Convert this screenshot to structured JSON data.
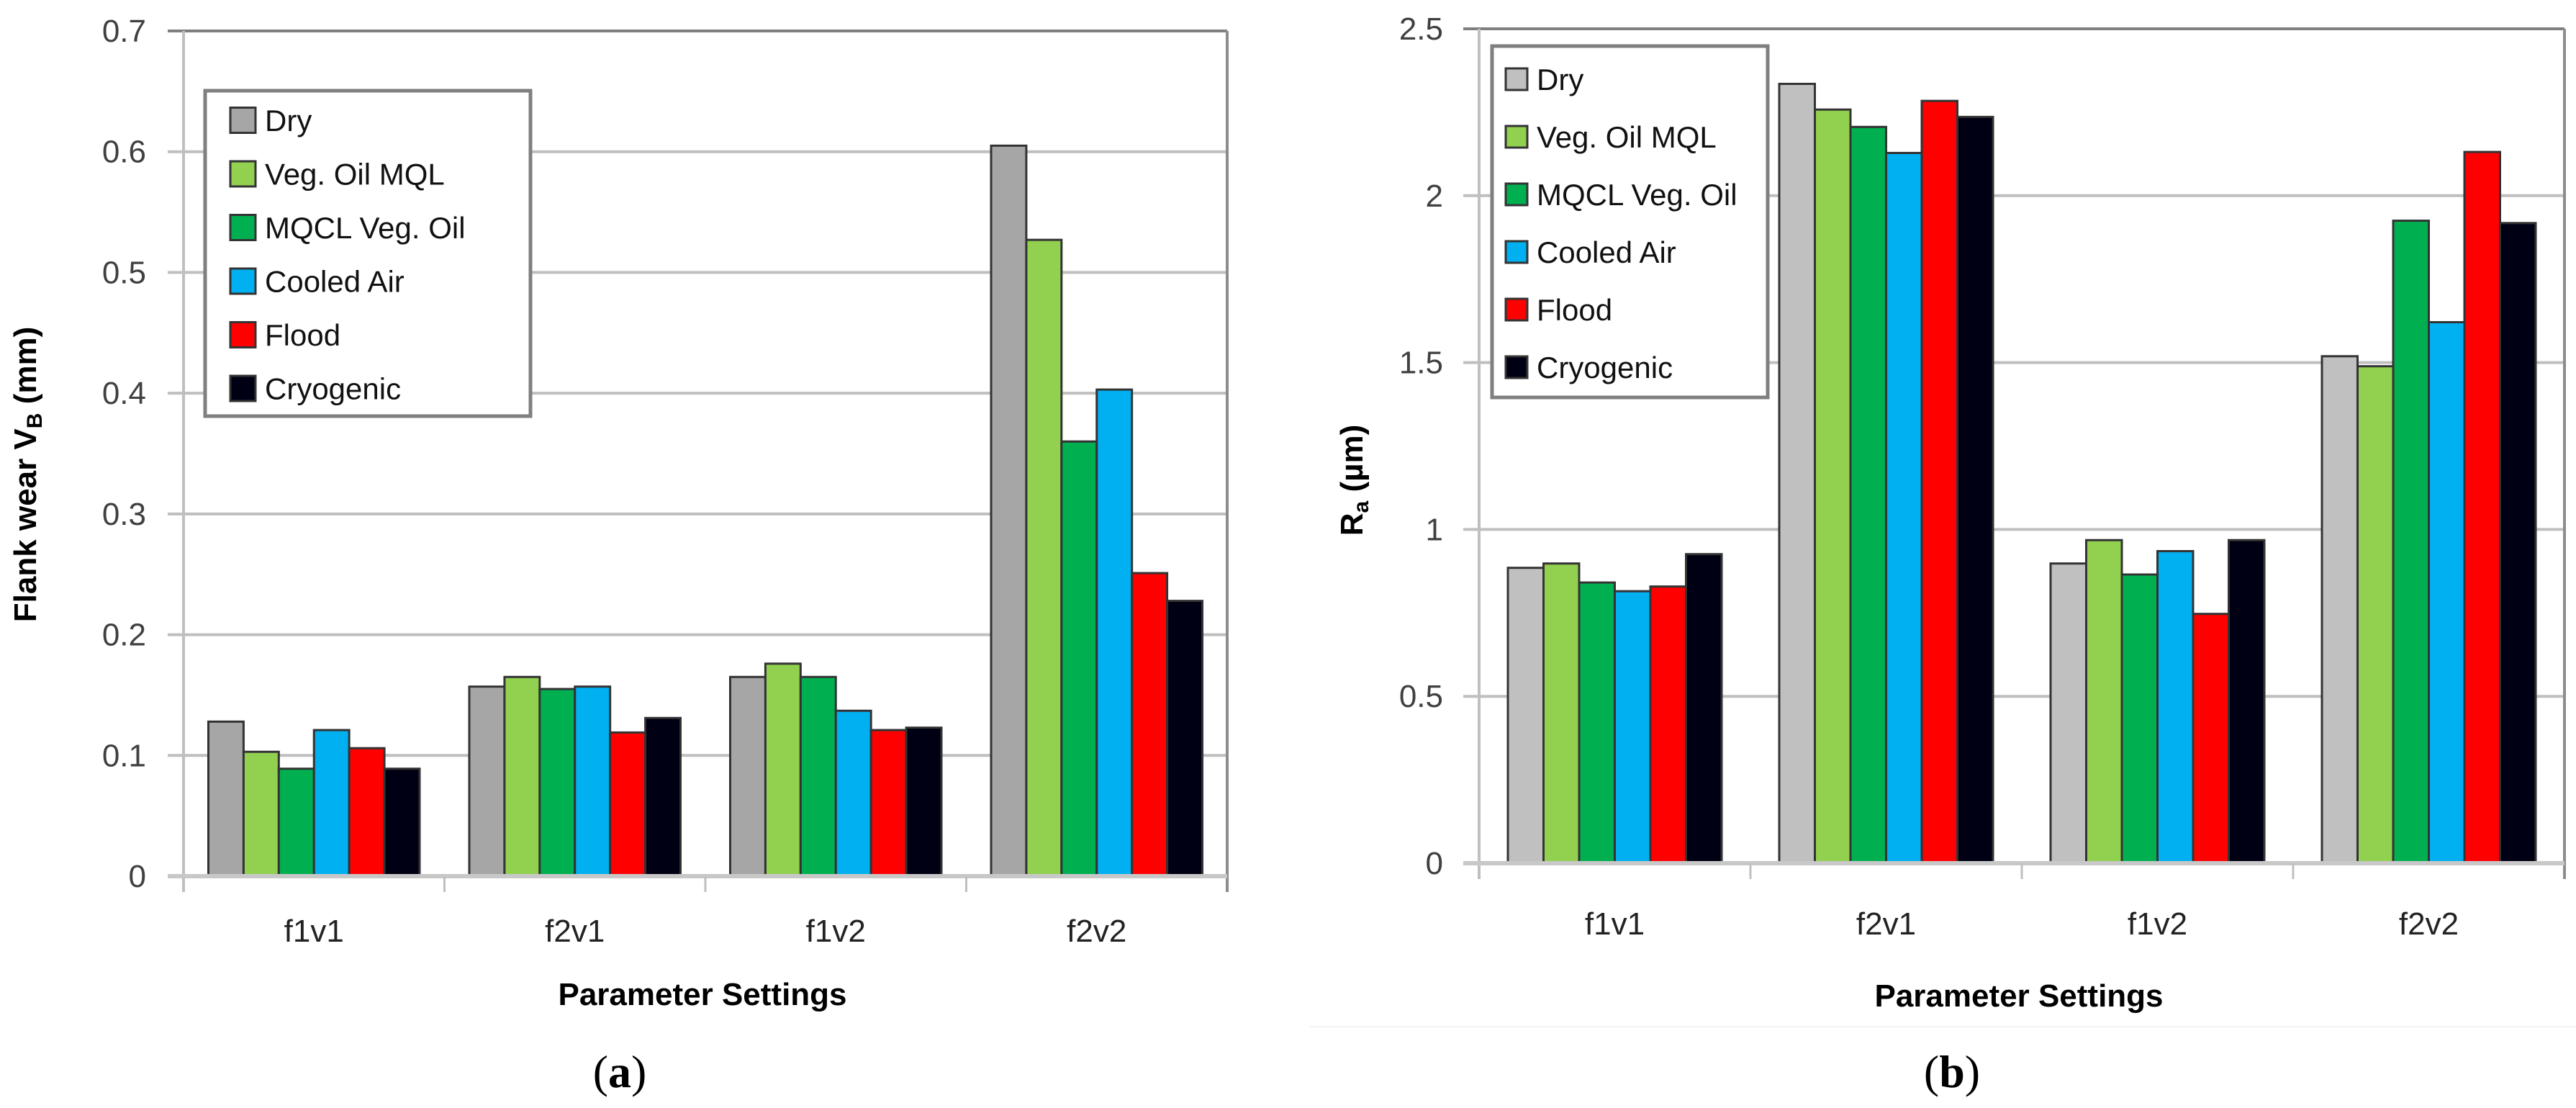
{
  "figure": {
    "captions": [
      {
        "open": "(",
        "letter": "a",
        "close": ")"
      },
      {
        "open": "(",
        "letter": "b",
        "close": ")"
      }
    ]
  },
  "chart_data": [
    {
      "id": "a",
      "type": "bar",
      "title": "",
      "xlabel": "Parameter Settings",
      "ylabel": {
        "main": "Flank wear V",
        "sub": "B",
        "unit": " (mm)"
      },
      "categories": [
        "f1v1",
        "f2v1",
        "f1v2",
        "f2v2"
      ],
      "ylim": [
        0,
        0.7
      ],
      "yticks": [
        0,
        0.1,
        0.2,
        0.3,
        0.4,
        0.5,
        0.6,
        0.7
      ],
      "ytick_labels": [
        "0",
        "0.1",
        "0.2",
        "0.3",
        "0.4",
        "0.5",
        "0.6",
        "0.7"
      ],
      "grid": true,
      "legend_position": "top-left",
      "series": [
        {
          "name": "Dry",
          "color": "#a6a6a6",
          "values": [
            0.128,
            0.157,
            0.165,
            0.605
          ]
        },
        {
          "name": "Veg. Oil MQL",
          "color": "#92d050",
          "values": [
            0.103,
            0.165,
            0.176,
            0.527
          ]
        },
        {
          "name": "MQCL Veg. Oil",
          "color": "#00b050",
          "values": [
            0.089,
            0.155,
            0.165,
            0.36
          ]
        },
        {
          "name": "Cooled Air",
          "color": "#00b0f0",
          "values": [
            0.121,
            0.157,
            0.137,
            0.403
          ]
        },
        {
          "name": "Flood",
          "color": "#ff0000",
          "values": [
            0.106,
            0.119,
            0.121,
            0.251
          ]
        },
        {
          "name": "Cryogenic",
          "color": "#000014",
          "values": [
            0.089,
            0.131,
            0.123,
            0.228
          ]
        }
      ]
    },
    {
      "id": "b",
      "type": "bar",
      "title": "",
      "xlabel": "Parameter Settings",
      "ylabel": {
        "main": "R",
        "sub": "a",
        "unit": " (µm)"
      },
      "categories": [
        "f1v1",
        "f2v1",
        "f1v2",
        "f2v2"
      ],
      "ylim": [
        0,
        2.5
      ],
      "yticks": [
        0,
        0.5,
        1,
        1.5,
        2,
        2.5
      ],
      "ytick_labels": [
        "0",
        "0.5",
        "1",
        "1.5",
        "2",
        "2.5"
      ],
      "grid": true,
      "legend_position": "top-left",
      "series": [
        {
          "name": "Dry",
          "color": "#c0c0c0",
          "values": [
            0.885,
            2.335,
            0.898,
            1.519
          ]
        },
        {
          "name": "Veg. Oil MQL",
          "color": "#92d050",
          "values": [
            0.898,
            2.258,
            0.968,
            1.489
          ]
        },
        {
          "name": "MQCL Veg. Oil",
          "color": "#00b050",
          "values": [
            0.841,
            2.206,
            0.865,
            1.925
          ]
        },
        {
          "name": "Cooled Air",
          "color": "#00b0f0",
          "values": [
            0.815,
            2.128,
            0.935,
            1.621
          ]
        },
        {
          "name": "Flood",
          "color": "#ff0000",
          "values": [
            0.829,
            2.284,
            0.747,
            2.131
          ]
        },
        {
          "name": "Cryogenic",
          "color": "#000014",
          "values": [
            0.926,
            2.236,
            0.968,
            1.918
          ]
        }
      ]
    }
  ]
}
